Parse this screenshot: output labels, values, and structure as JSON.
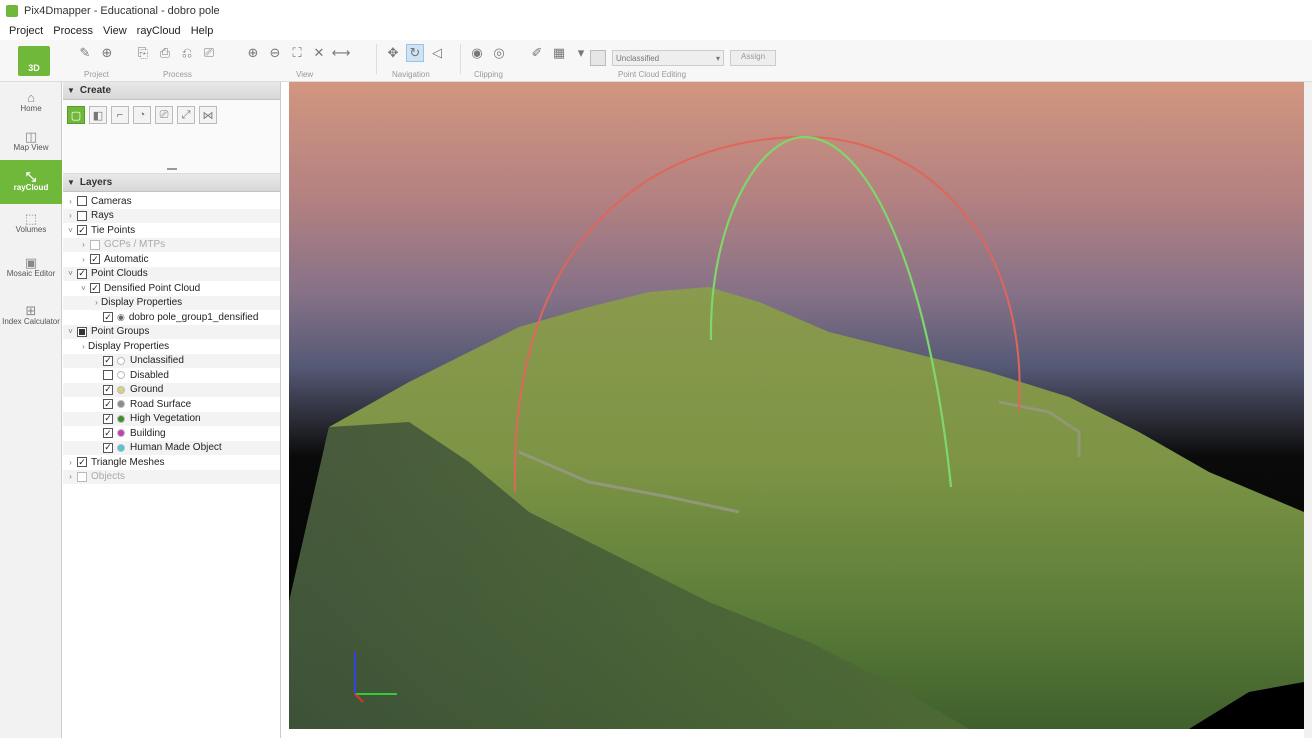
{
  "window": {
    "title": "Pix4Dmapper - Educational - dobro pole"
  },
  "menu": [
    "Project",
    "Process",
    "View",
    "rayCloud",
    "Help"
  ],
  "toolbar": {
    "logo_label": "3D",
    "groups": [
      "Project",
      "Process",
      "View",
      "Navigation",
      "Clipping",
      "Point Cloud Editing"
    ],
    "class_select": "Unclassified",
    "apply_label": "Assign"
  },
  "leftnav": [
    {
      "label": "Home",
      "icon": "home-icon",
      "glyph": "⌂"
    },
    {
      "label": "Map View",
      "icon": "map-view-icon",
      "glyph": "◫"
    },
    {
      "label": "rayCloud",
      "icon": "raycloud-icon",
      "glyph": "⤡"
    },
    {
      "label": "Volumes",
      "icon": "volumes-icon",
      "glyph": "⬚"
    },
    {
      "label": "Mosaic Editor",
      "icon": "mosaic-editor-icon",
      "glyph": "▣"
    },
    {
      "label": "Index Calculator",
      "icon": "index-calculator-icon",
      "glyph": "⊞"
    }
  ],
  "panels": {
    "create": "Create",
    "layers": "Layers"
  },
  "layers": [
    {
      "label": "Cameras",
      "level": 0,
      "expander": ">",
      "check": "off",
      "disabled": false
    },
    {
      "label": "Rays",
      "level": 0,
      "expander": ">",
      "check": "off",
      "disabled": false
    },
    {
      "label": "Tie Points",
      "level": 0,
      "expander": "v",
      "check": "on",
      "disabled": false
    },
    {
      "label": "GCPs / MTPs",
      "level": 1,
      "expander": ">",
      "check": "off",
      "disabled": true
    },
    {
      "label": "Automatic",
      "level": 1,
      "expander": ">",
      "check": "on",
      "disabled": false
    },
    {
      "label": "Point Clouds",
      "level": 0,
      "expander": "v",
      "check": "on",
      "disabled": false
    },
    {
      "label": "Densified Point Cloud",
      "level": 1,
      "expander": "v",
      "check": "on",
      "disabled": false
    },
    {
      "label": "Display Properties",
      "level": 2,
      "expander": ">",
      "check": "none",
      "disabled": false
    },
    {
      "label": "dobro pole_group1_densified",
      "level": 2,
      "expander": "",
      "check": "on",
      "eye": true,
      "disabled": false
    },
    {
      "label": "Point Groups",
      "level": 0,
      "expander": "v",
      "check": "partial",
      "disabled": false
    },
    {
      "label": "Display Properties",
      "level": 1,
      "expander": ">",
      "check": "none",
      "disabled": false
    },
    {
      "label": "Unclassified",
      "level": 2,
      "expander": "",
      "check": "on",
      "dot": "#ffffff",
      "disabled": false
    },
    {
      "label": "Disabled",
      "level": 2,
      "expander": "",
      "check": "off",
      "dot": "#ffffff",
      "disabled": false
    },
    {
      "label": "Ground",
      "level": 2,
      "expander": "",
      "check": "on",
      "dot": "#d8d27a",
      "disabled": false
    },
    {
      "label": "Road Surface",
      "level": 2,
      "expander": "",
      "check": "on",
      "dot": "#8b8b8b",
      "disabled": false
    },
    {
      "label": "High Vegetation",
      "level": 2,
      "expander": "",
      "check": "on",
      "dot": "#3e8c2e",
      "disabled": false
    },
    {
      "label": "Building",
      "level": 2,
      "expander": "",
      "check": "on",
      "dot": "#c43fb5",
      "disabled": false
    },
    {
      "label": "Human Made Object",
      "level": 2,
      "expander": "",
      "check": "on",
      "dot": "#4bc8d2",
      "disabled": false
    },
    {
      "label": "Triangle Meshes",
      "level": 0,
      "expander": ">",
      "check": "on",
      "disabled": false
    },
    {
      "label": "Objects",
      "level": 0,
      "expander": ">",
      "check": "off",
      "disabled": true
    }
  ],
  "colors": {
    "brand_green": "#6fb83a",
    "arc_red": "#e0655a",
    "arc_green": "#7fd66a",
    "axis_x": "#d33",
    "axis_y": "#3c3",
    "axis_z": "#33d"
  }
}
